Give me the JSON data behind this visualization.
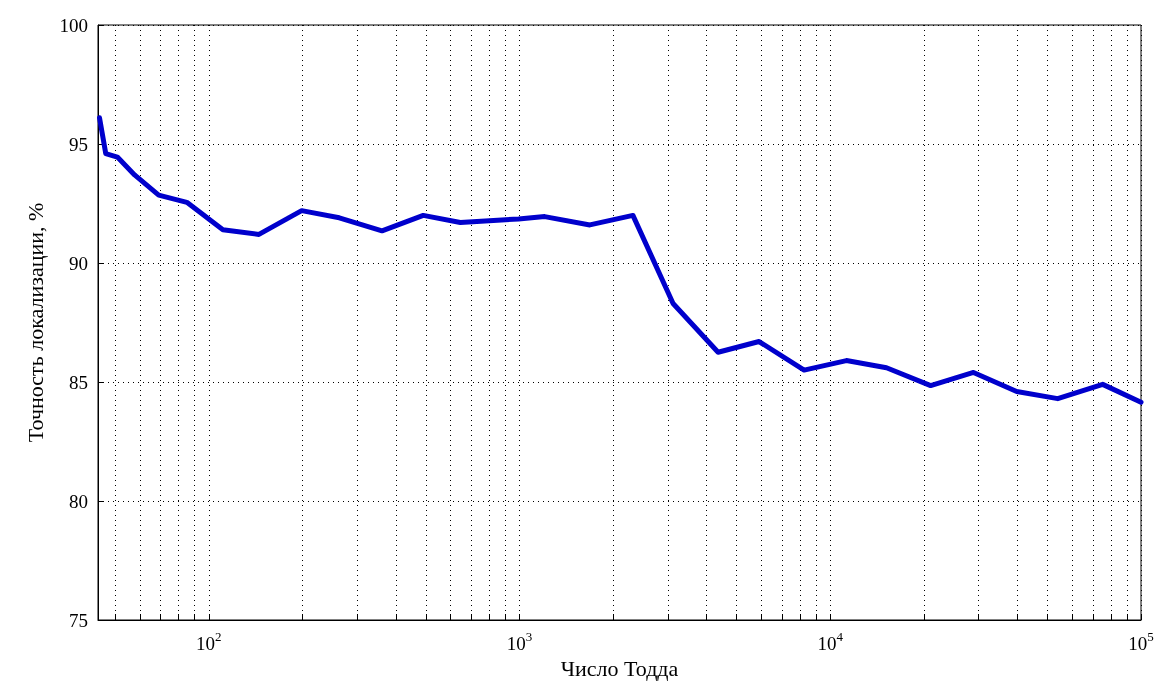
{
  "chart_data": {
    "type": "line",
    "xlabel": "Число Тодда",
    "ylabel": "Точность локализации, %",
    "log": "x",
    "grid": true,
    "marker": "none",
    "line_style": "solid",
    "xlim": [
      44,
      100000
    ],
    "ylim": [
      75,
      100
    ],
    "xticks": [
      {
        "value": 50,
        "label": null
      },
      {
        "value": 60,
        "label": null
      },
      {
        "value": 70,
        "label": null
      },
      {
        "value": 80,
        "label": null
      },
      {
        "value": 90,
        "label": null
      },
      {
        "value": 100,
        "label": "10$^{2}$"
      },
      {
        "value": 200,
        "label": null
      },
      {
        "value": 300,
        "label": null
      },
      {
        "value": 400,
        "label": null
      },
      {
        "value": 500,
        "label": null
      },
      {
        "value": 600,
        "label": null
      },
      {
        "value": 700,
        "label": null
      },
      {
        "value": 800,
        "label": null
      },
      {
        "value": 900,
        "label": null
      },
      {
        "value": 1000,
        "label": "10$^{3}$"
      },
      {
        "value": 2000,
        "label": null
      },
      {
        "value": 3000,
        "label": null
      },
      {
        "value": 4000,
        "label": null
      },
      {
        "value": 5000,
        "label": null
      },
      {
        "value": 6000,
        "label": null
      },
      {
        "value": 7000,
        "label": null
      },
      {
        "value": 8000,
        "label": null
      },
      {
        "value": 9000,
        "label": null
      },
      {
        "value": 10000,
        "label": "10$^{4}$"
      },
      {
        "value": 20000,
        "label": null
      },
      {
        "value": 30000,
        "label": null
      },
      {
        "value": 40000,
        "label": null
      },
      {
        "value": 50000,
        "label": null
      },
      {
        "value": 60000,
        "label": null
      },
      {
        "value": 70000,
        "label": null
      },
      {
        "value": 80000,
        "label": null
      },
      {
        "value": 90000,
        "label": null
      },
      {
        "value": 100000,
        "label": "10$^{5}$"
      }
    ],
    "yticks": [
      75,
      80,
      85,
      90,
      95,
      100
    ],
    "series": [
      {
        "color": "#0000cc",
        "x": [
          44.5,
          46.6,
          50.8,
          57.7,
          69,
          85,
          111,
          145,
          199,
          263,
          361,
          490,
          645,
          993,
          1205,
          1684,
          2317,
          3120,
          4355,
          5900,
          8240,
          11270,
          15170,
          21040,
          28900,
          39800,
          53950,
          75300,
          100000
        ],
        "values": [
          96.1,
          94.6,
          94.45,
          93.7,
          92.85,
          92.55,
          91.4,
          91.2,
          92.2,
          91.9,
          91.35,
          92.0,
          91.7,
          91.85,
          91.95,
          91.6,
          92.0,
          88.3,
          86.25,
          86.7,
          85.5,
          85.9,
          85.6,
          84.85,
          85.4,
          84.6,
          84.3,
          84.9,
          84.15
        ]
      }
    ]
  }
}
